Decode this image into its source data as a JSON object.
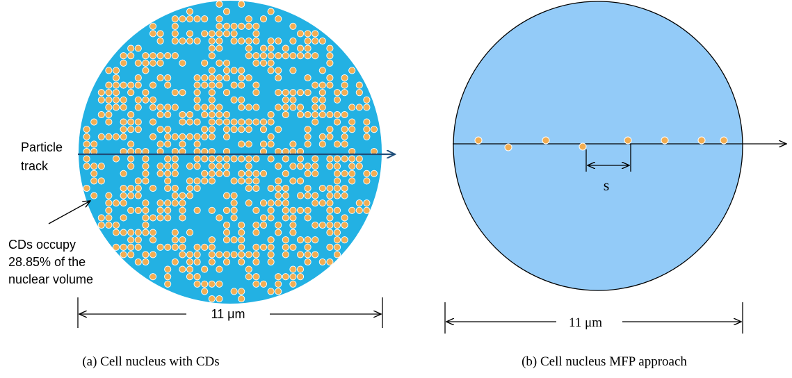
{
  "left": {
    "track_label": [
      "Particle",
      "track"
    ],
    "note": [
      "CDs occupy",
      "28.85% of the",
      "nuclear volume"
    ],
    "dimension": "11 μm",
    "caption": "(a) Cell nucleus with CDs"
  },
  "right": {
    "spacing_label": "s",
    "dimension": "11 μm",
    "caption": "(b) Cell nucleus MFP approach"
  }
}
